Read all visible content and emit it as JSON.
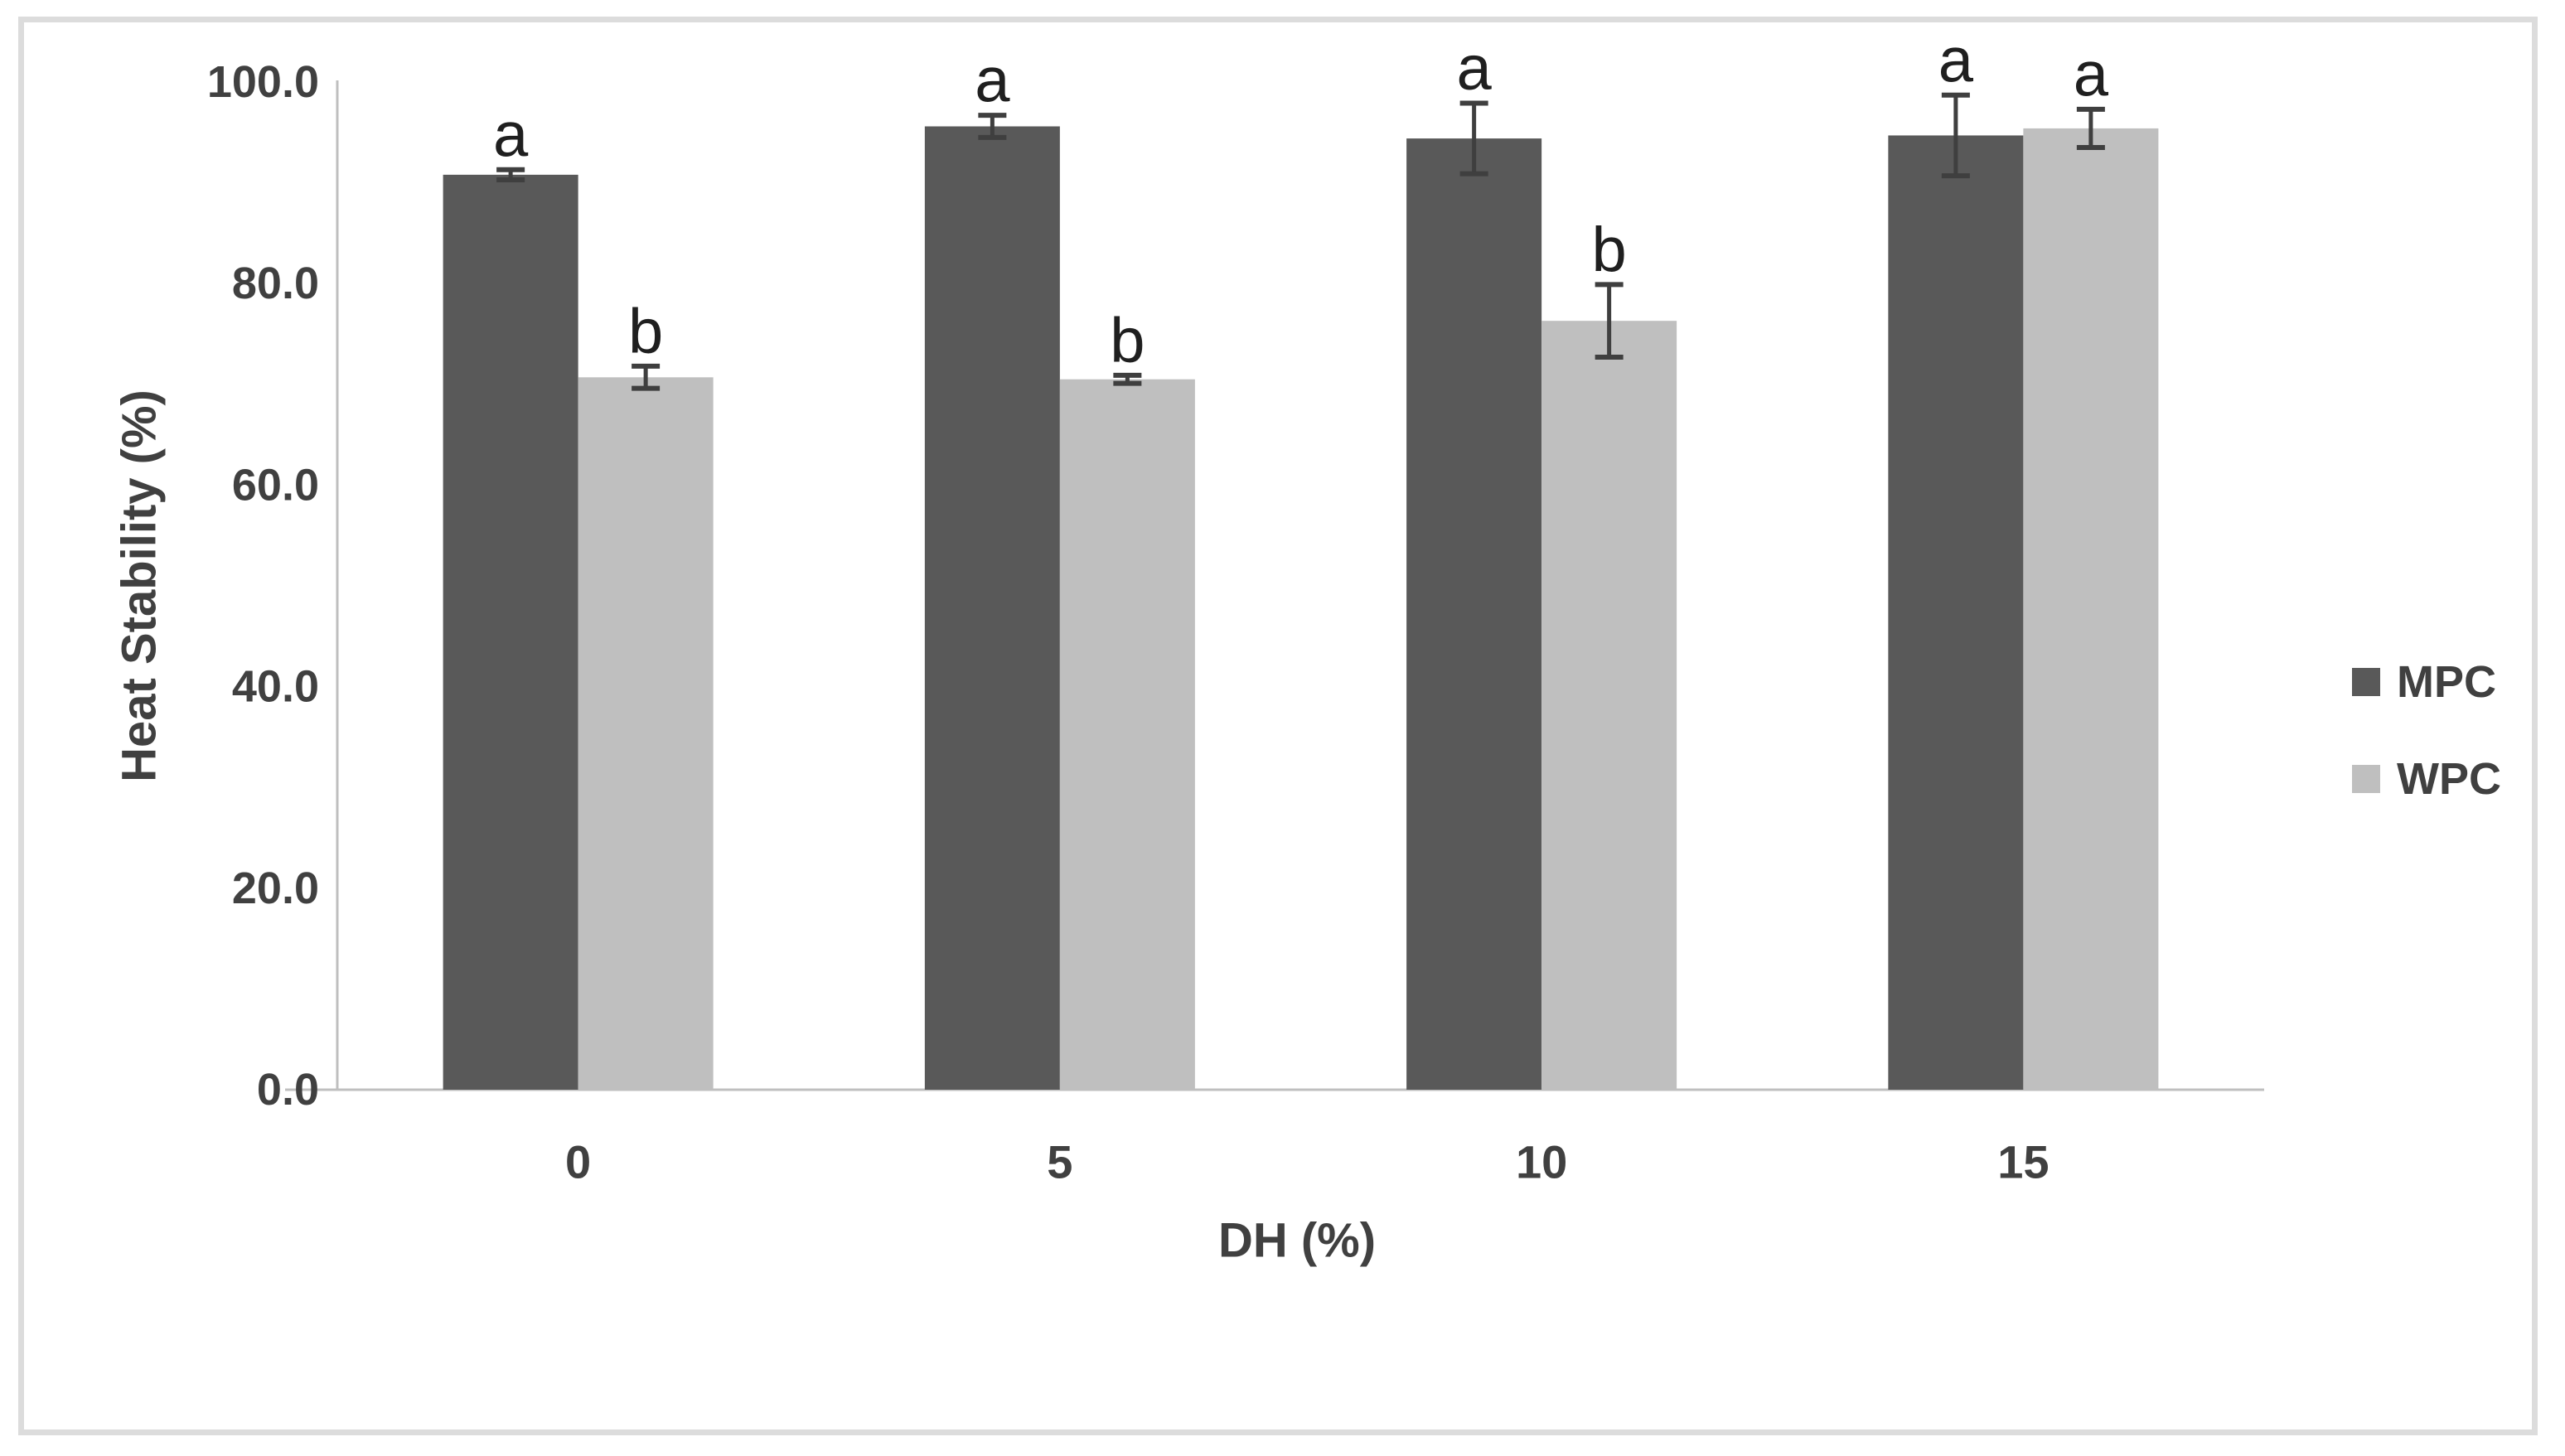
{
  "figure": {
    "background_color": "#ffffff",
    "border_color": "#dcdcdc"
  },
  "chart_data": {
    "type": "bar",
    "title": "",
    "xlabel": "DH (%)",
    "ylabel": "Heat Stability (%)",
    "categories": [
      "0",
      "5",
      "10",
      "15"
    ],
    "series": [
      {
        "name": "MPC",
        "color": "#595959",
        "values": [
          90.8,
          95.6,
          94.4,
          94.7
        ],
        "errors": [
          0.5,
          1.1,
          3.5,
          4.0
        ],
        "letters": [
          "a",
          "a",
          "a",
          "a"
        ]
      },
      {
        "name": "WPC",
        "color": "#bfbfbf",
        "values": [
          70.7,
          70.5,
          76.3,
          95.4
        ],
        "errors": [
          1.1,
          0.4,
          3.6,
          1.9
        ],
        "letters": [
          "b",
          "b",
          "b",
          "a"
        ]
      }
    ],
    "y_ticks": [
      "100.0",
      "80.0",
      "60.0",
      "40.0",
      "20.0",
      "0.0"
    ],
    "ylim": [
      0,
      100
    ],
    "grid": false,
    "legend_position": "right",
    "axis_line_color": "#bfbfbf",
    "text_color": "#404040",
    "letter_color": "#1f1f1f",
    "error_bar_color": "#3f3f3f"
  }
}
